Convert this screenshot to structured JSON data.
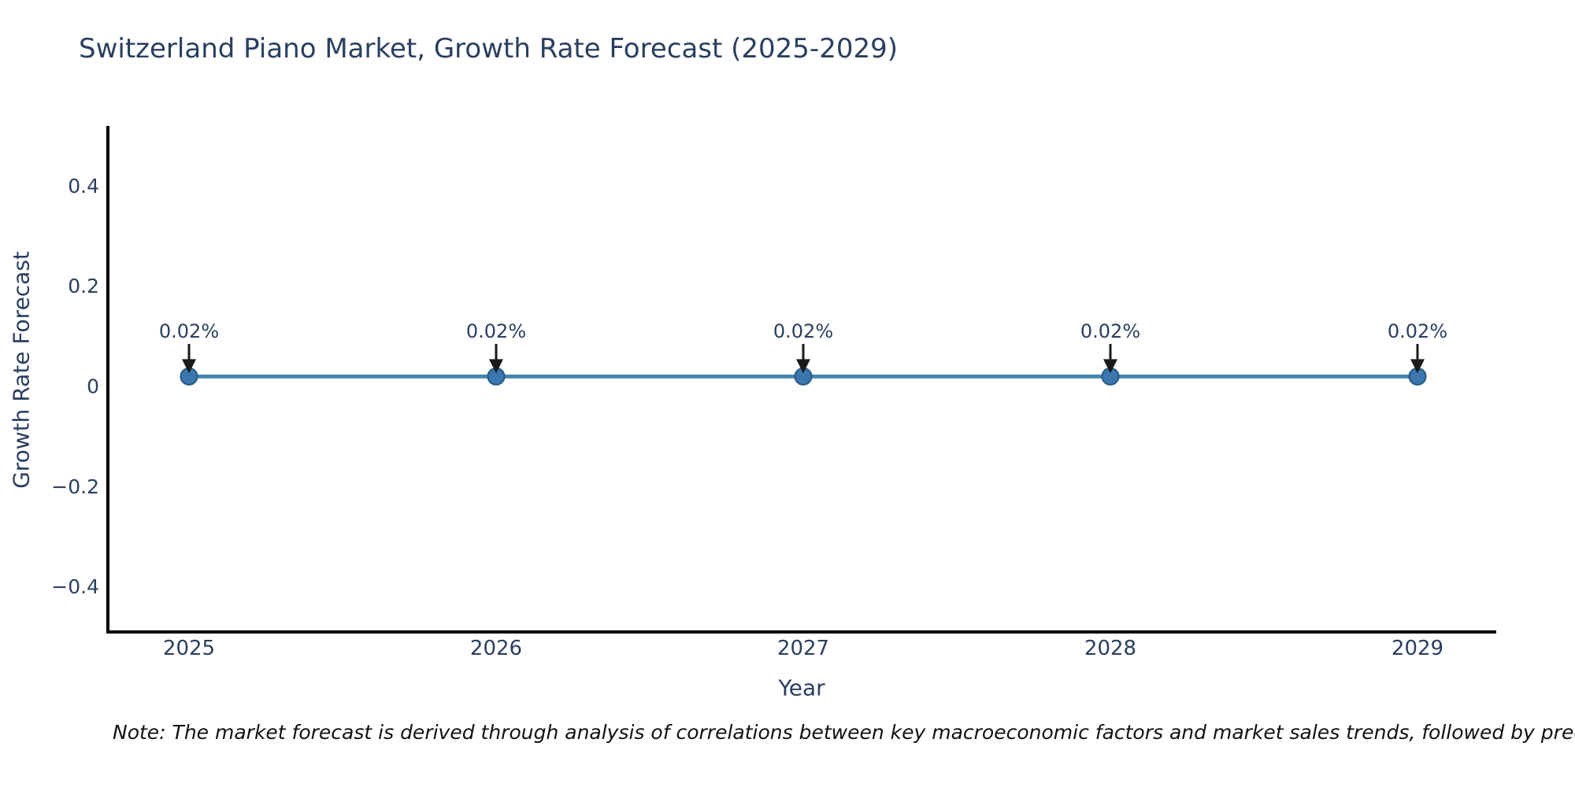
{
  "note": {
    "text": "Note: The market forecast is derived through analysis of correlations between key macroeconomic factors and market sales trends, followed by predictive modeling to project future sales."
  },
  "colors": {
    "text": "#2a3f5f",
    "axis_line": "#000000",
    "trend_line": "#4685af",
    "marker_fill": "#3b77ae",
    "marker_edge": "#275b85",
    "annotation_text": "#2a3f5f",
    "annotation_arrow": "#1a1a1a",
    "note_text": "#111111",
    "background": "#ffffff"
  },
  "chart_data": {
    "type": "line",
    "title": "Switzerland Piano Market, Growth Rate Forecast (2025-2029)",
    "xlabel": "Year",
    "ylabel": "Growth Rate Forecast",
    "x": [
      2025,
      2026,
      2027,
      2028,
      2029
    ],
    "xtick_labels": [
      "2025",
      "2026",
      "2027",
      "2028",
      "2029"
    ],
    "series": [
      {
        "name": "Growth Rate Forecast",
        "values": [
          0.02,
          0.02,
          0.02,
          0.02,
          0.02
        ],
        "point_labels": [
          "0.02%",
          "0.02%",
          "0.02%",
          "0.02%",
          "0.02%"
        ]
      }
    ],
    "yticks": [
      0.4,
      0.2,
      0,
      -0.2,
      -0.4
    ],
    "ytick_labels": [
      "0.4",
      "0.2",
      "0",
      "−0.2",
      "−0.4"
    ],
    "ylim": [
      -0.49,
      0.52
    ],
    "grid": false,
    "legend": "none",
    "annotation_arrow_direction": "down",
    "spines": [
      "left",
      "bottom"
    ]
  }
}
